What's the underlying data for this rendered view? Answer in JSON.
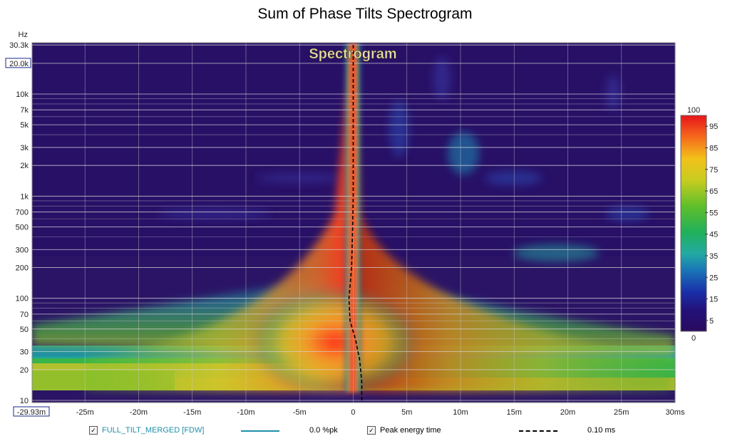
{
  "chart_data": {
    "type": "heatmap",
    "title": "Sum of Phase Tilts Spectrogram",
    "overlay_label": "Spectrogram",
    "y_unit": "Hz",
    "y_scale": "log",
    "y_range_hz": [
      10,
      30300
    ],
    "y_ticks": [
      {
        "v": 30300,
        "label": "30.3k"
      },
      {
        "v": 20000,
        "label": "20.0k",
        "boxed": true
      },
      {
        "v": 10000,
        "label": "10k"
      },
      {
        "v": 7000,
        "label": "7k"
      },
      {
        "v": 5000,
        "label": "5k"
      },
      {
        "v": 3000,
        "label": "3k"
      },
      {
        "v": 2000,
        "label": "2k"
      },
      {
        "v": 1000,
        "label": "1k"
      },
      {
        "v": 700,
        "label": "700"
      },
      {
        "v": 500,
        "label": "500"
      },
      {
        "v": 300,
        "label": "300"
      },
      {
        "v": 200,
        "label": "200"
      },
      {
        "v": 100,
        "label": "100"
      },
      {
        "v": 70,
        "label": "70"
      },
      {
        "v": 50,
        "label": "50"
      },
      {
        "v": 30,
        "label": "30"
      },
      {
        "v": 20,
        "label": "20"
      },
      {
        "v": 10,
        "label": "10"
      }
    ],
    "x_unit": "ms",
    "x_range_ms": [
      -29.93,
      30
    ],
    "x_ticks": [
      {
        "v": -29.93,
        "label": "-29.93m",
        "boxed": true
      },
      {
        "v": -25,
        "label": "-25m"
      },
      {
        "v": -20,
        "label": "-20m"
      },
      {
        "v": -15,
        "label": "-15m"
      },
      {
        "v": -10,
        "label": "-10m"
      },
      {
        "v": -5,
        "label": "-5m"
      },
      {
        "v": 0,
        "label": "0"
      },
      {
        "v": 5,
        "label": "5m"
      },
      {
        "v": 10,
        "label": "10m"
      },
      {
        "v": 15,
        "label": "15m"
      },
      {
        "v": 20,
        "label": "20m"
      },
      {
        "v": 25,
        "label": "25m"
      },
      {
        "v": 30,
        "label": "30ms"
      }
    ],
    "colorbar": {
      "range": [
        0,
        100
      ],
      "top_label": "100",
      "bottom_label": "0",
      "tick_labels": [
        "95",
        "85",
        "75",
        "65",
        "55",
        "45",
        "35",
        "25",
        "15",
        "5"
      ]
    },
    "series": [
      {
        "name": "FULL_TILT_MERGED [FDW]",
        "value_label": "0.0 %pk",
        "color": "#1f8fa8",
        "checked": true
      },
      {
        "name": "Peak energy time",
        "value_label": "0.10 ms",
        "color": "#000000",
        "checked": true
      }
    ],
    "peak_energy_time_ms": [
      {
        "hz": 10,
        "ms": 0.8
      },
      {
        "hz": 15,
        "ms": 0.8
      },
      {
        "hz": 25,
        "ms": 0.6
      },
      {
        "hz": 40,
        "ms": 0.2
      },
      {
        "hz": 60,
        "ms": -0.3
      },
      {
        "hz": 100,
        "ms": -0.4
      },
      {
        "hz": 200,
        "ms": -0.15
      },
      {
        "hz": 500,
        "ms": -0.05
      },
      {
        "hz": 1000,
        "ms": 0.0
      },
      {
        "hz": 3000,
        "ms": 0.0
      },
      {
        "hz": 10000,
        "ms": 0.0
      },
      {
        "hz": 30300,
        "ms": 0.0
      }
    ]
  }
}
